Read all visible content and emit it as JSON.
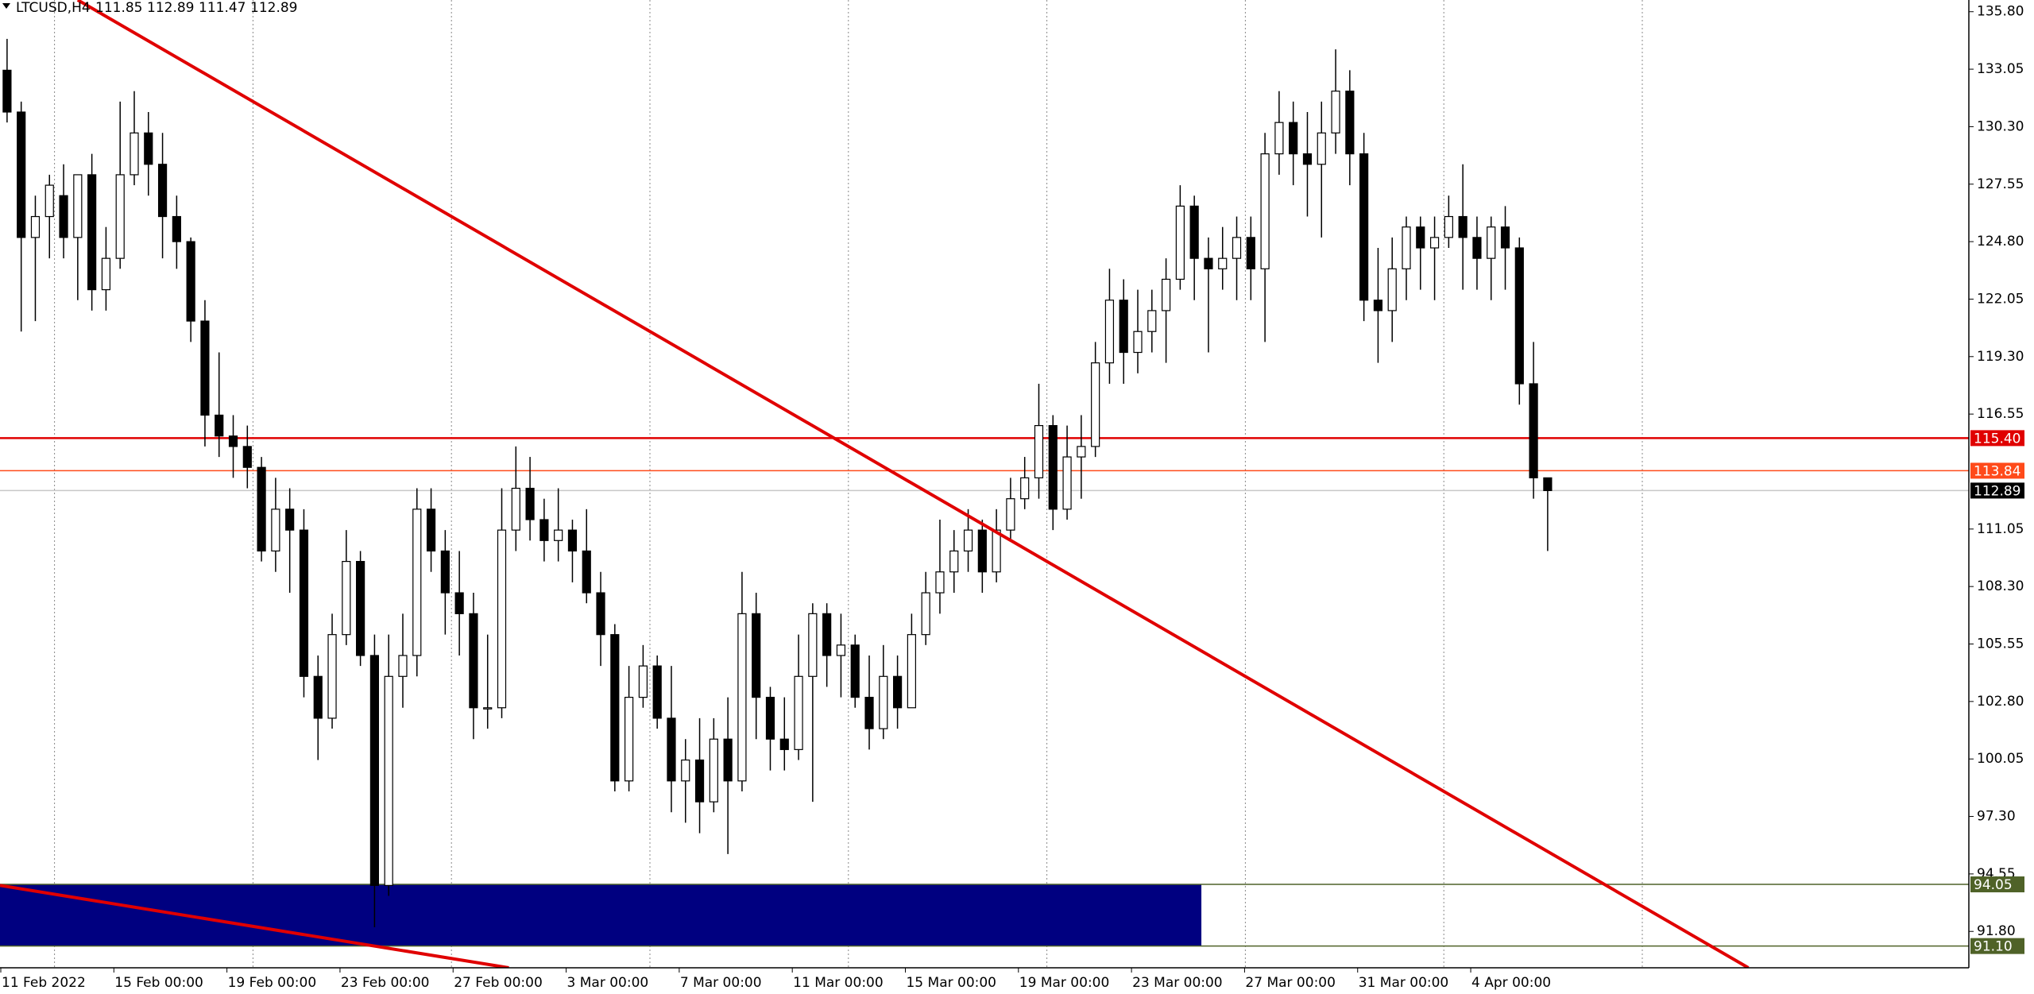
{
  "chart_data": {
    "type": "candlestick",
    "symbol": "LTCUSD,H4",
    "ohlc_header": [
      111.85,
      112.89,
      111.47,
      112.89
    ],
    "open": [
      133,
      131,
      125,
      126,
      127,
      125,
      128,
      122.5,
      124,
      128,
      130,
      128.5,
      126,
      124.8,
      121,
      116.5,
      115.5,
      115,
      114,
      110,
      112,
      111,
      104,
      102,
      106,
      109.5,
      105,
      94,
      104,
      105,
      112,
      110,
      108,
      107,
      102.5,
      102.5,
      111,
      113,
      111.5,
      110.5,
      111,
      110,
      108,
      106,
      99,
      103,
      104.5,
      102,
      99,
      100,
      98,
      101,
      99,
      107,
      103,
      101,
      100.5,
      104,
      107,
      105,
      105.5,
      103,
      101.5,
      104,
      102.5,
      106,
      108,
      109,
      110,
      111,
      109,
      111,
      112.5,
      113.5,
      116,
      112,
      114.5,
      115,
      119,
      122,
      119.5,
      120.5,
      121.5,
      123,
      126.5,
      124,
      123.5,
      124,
      125,
      123.5,
      129,
      130.5,
      129,
      128.5,
      130,
      132,
      129,
      122,
      121.5,
      123.5,
      125.5,
      124.5,
      125,
      126,
      125,
      124,
      125.5,
      124.5,
      118,
      113.5
    ],
    "high": [
      134.5,
      131.5,
      127,
      128,
      128.5,
      128,
      129,
      125.5,
      131.5,
      132,
      131,
      130,
      127,
      125,
      122,
      119.5,
      116.5,
      116,
      114.5,
      113.5,
      113,
      112,
      105,
      107,
      111,
      110,
      106,
      106,
      107,
      113,
      113,
      111,
      110,
      108,
      106,
      113,
      115,
      114.5,
      112.5,
      113,
      111.5,
      112,
      109,
      106.5,
      104.5,
      105.5,
      105,
      104.5,
      101,
      102,
      102,
      103,
      109,
      108,
      103.5,
      103,
      106,
      107.5,
      107.5,
      107,
      106,
      105,
      105.5,
      105,
      107,
      109,
      111.5,
      111,
      112,
      111.5,
      112,
      113.5,
      114.5,
      118,
      116.5,
      116,
      116.5,
      120,
      123.5,
      123,
      122.5,
      122.5,
      124,
      127.5,
      127,
      125,
      125.5,
      126,
      126,
      130,
      132,
      131.5,
      131,
      131.5,
      134,
      133,
      130,
      124.5,
      125,
      126,
      126,
      126,
      127,
      128.5,
      126,
      126,
      126.5,
      125,
      120,
      113.5
    ],
    "low": [
      130.5,
      120.5,
      121,
      124,
      124,
      122,
      121.5,
      121.5,
      123.5,
      127.5,
      127,
      124,
      123.5,
      120,
      115,
      114.5,
      113.5,
      113,
      109.5,
      109,
      108,
      103,
      100,
      101.5,
      105.5,
      104.5,
      92,
      93.5,
      102.5,
      104,
      109,
      106,
      105,
      101,
      101.5,
      102,
      110,
      110.5,
      109.5,
      109.5,
      108.5,
      107.5,
      104.5,
      98.5,
      98.5,
      102.5,
      101.5,
      97.5,
      97,
      96.5,
      97.5,
      95.5,
      98.5,
      101,
      99.5,
      99.5,
      100,
      98,
      103.5,
      103,
      102.5,
      100.5,
      101,
      101.5,
      102.5,
      105.5,
      107,
      108,
      109,
      108,
      108.5,
      110.5,
      112,
      112.5,
      111,
      111.5,
      112.5,
      114.5,
      118,
      118,
      118.5,
      119.5,
      119,
      122.5,
      122,
      119.5,
      122.5,
      122,
      122,
      120,
      128,
      127.5,
      126,
      125,
      129,
      127.5,
      121,
      119,
      120,
      122,
      122.5,
      122,
      124.5,
      122.5,
      122.5,
      122,
      122.5,
      117,
      112.5,
      110
    ],
    "close": [
      131,
      125,
      126,
      127.5,
      125,
      128,
      122.5,
      124,
      128,
      130,
      128.5,
      126,
      124.8,
      121,
      116.5,
      115.5,
      115,
      114,
      110,
      112,
      111,
      104,
      102,
      106,
      109.5,
      105,
      94,
      104,
      105,
      112,
      110,
      108,
      107,
      102.5,
      102.5,
      111,
      113,
      111.5,
      110.5,
      111,
      110,
      108,
      106,
      99,
      103,
      104.5,
      102,
      99,
      100,
      98,
      101,
      99,
      107,
      103,
      101,
      100.5,
      104,
      107,
      105,
      105.5,
      103,
      101.5,
      104,
      102.5,
      106,
      108,
      109,
      110,
      111,
      109,
      111,
      112.5,
      113.5,
      116,
      112,
      114.5,
      115,
      119,
      122,
      119.5,
      120.5,
      121.5,
      123,
      126.5,
      124,
      123.5,
      124,
      125,
      123.5,
      129,
      130.5,
      129,
      128.5,
      130,
      132,
      129,
      122,
      121.5,
      123.5,
      125.5,
      124.5,
      125,
      126,
      125,
      124,
      125.5,
      124.5,
      118,
      113.5,
      112.89
    ],
    "xlim": [
      0,
      139.3
    ],
    "xticks": [
      {
        "value": 0,
        "label": "11 Feb 2022"
      },
      {
        "value": 8,
        "label": "15 Feb 00:00"
      },
      {
        "value": 16,
        "label": "19 Feb 00:00"
      },
      {
        "value": 24,
        "label": "23 Feb 00:00"
      },
      {
        "value": 32,
        "label": "27 Feb 00:00"
      },
      {
        "value": 40,
        "label": "3 Mar 00:00"
      },
      {
        "value": 48,
        "label": "7 Mar 00:00"
      },
      {
        "value": 56,
        "label": "11 Mar 00:00"
      },
      {
        "value": 64,
        "label": "15 Mar 00:00"
      },
      {
        "value": 72,
        "label": "19 Mar 00:00"
      },
      {
        "value": 80,
        "label": "23 Mar 00:00"
      },
      {
        "value": 88,
        "label": "27 Mar 00:00"
      },
      {
        "value": 96,
        "label": "31 Mar 00:00"
      },
      {
        "value": 104,
        "label": "4 Apr 00:00"
      }
    ],
    "ylim": [
      90.06,
      136.36
    ],
    "yticks": [
      {
        "value": 135.8,
        "label": "135.80"
      },
      133.05,
      {
        "value": 130.3,
        "label": "130.30"
      },
      127.55,
      {
        "value": 124.8,
        "label": "124.80"
      },
      122.05,
      {
        "value": 119.3,
        "label": "119.30"
      },
      116.55,
      111.05,
      {
        "value": 108.3,
        "label": "108.30"
      },
      105.55,
      {
        "value": 102.8,
        "label": "102.80"
      },
      100.05,
      {
        "value": 97.3,
        "label": "97.30"
      },
      94.55,
      {
        "value": 91.8,
        "label": "91.80"
      }
    ],
    "levels": [
      {
        "value": 115.4,
        "label": "115.40",
        "color": "#e00000"
      },
      {
        "value": 113.84,
        "label": "113.84",
        "color": "#ff4a1a"
      },
      {
        "value": 112.89,
        "label": "112.89",
        "color": "#000000"
      },
      {
        "value": 94.05,
        "label": "94.05",
        "color": "#4f6228"
      },
      {
        "value": 91.1,
        "label": "91.10",
        "color": "#4f6228"
      }
    ],
    "rectangle": {
      "x": [
        0,
        85
      ],
      "y": [
        94.05,
        91.1
      ],
      "color": "#000080"
    },
    "trendlines": [
      {
        "x": [
          5.5,
          123.7
        ],
        "y": [
          136.36,
          90.06
        ],
        "color": "#e00000"
      },
      {
        "x": [
          0,
          36
        ],
        "y": [
          94.0,
          90.06
        ],
        "color": "#e00000"
      }
    ]
  }
}
